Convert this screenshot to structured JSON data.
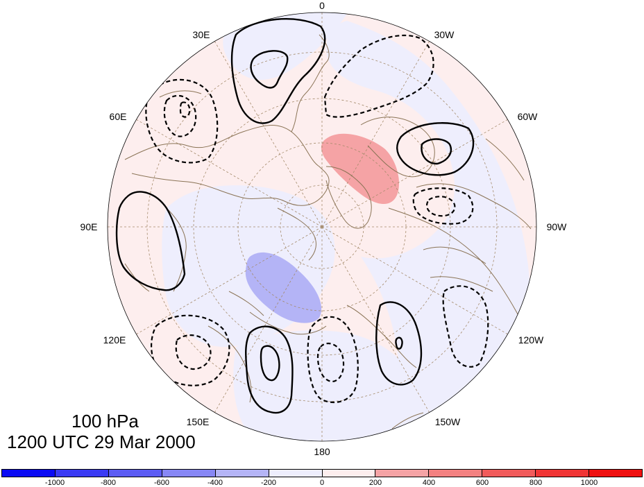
{
  "map": {
    "projection": "north polar stereographic",
    "longitude_labels": [
      "0",
      "30W",
      "60W",
      "90W",
      "120W",
      "150W",
      "180",
      "150E",
      "120E",
      "90E",
      "60E",
      "30E"
    ],
    "colors": {
      "positive_light": "#fdeeee",
      "negative_light": "#eeeefd",
      "positive_mid": "#f5a3a5",
      "negative_mid": "#b4b4f6",
      "coastline": "#8a7355",
      "graticule": "#a48a6a",
      "contour": "#000000"
    },
    "features": [
      {
        "name": "positive-anomaly-north-atlantic",
        "sign": "positive"
      },
      {
        "name": "negative-anomaly-east-siberia",
        "sign": "negative"
      }
    ]
  },
  "labels": {
    "level": "100 hPa",
    "time": "1200 UTC 29 Mar 2000"
  },
  "colorbar": {
    "colors": [
      "#0b0bf4",
      "#3a3af4",
      "#5c5cf4",
      "#8787f5",
      "#b4b4f6",
      "#eeeefd",
      "#fdeeee",
      "#f5a3a5",
      "#f38181",
      "#f15b5b",
      "#f03535",
      "#ef1111"
    ],
    "tick_labels": [
      "-1000",
      "-800",
      "-600",
      "-400",
      "-200",
      "0",
      "200",
      "400",
      "600",
      "800",
      "1000"
    ]
  }
}
